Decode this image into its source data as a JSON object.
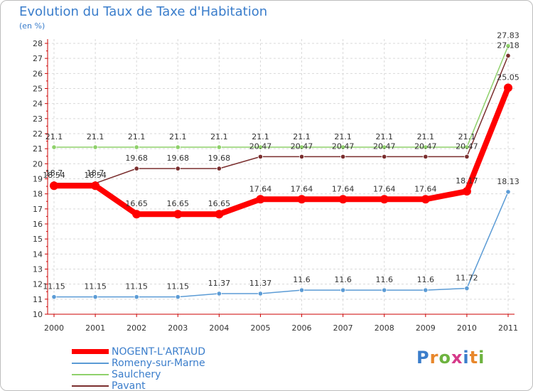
{
  "chart_data": {
    "type": "line",
    "title": "Evolution du Taux de Taxe d'Habitation",
    "unit_label": "(en %)",
    "xlabel": "",
    "ylabel": "",
    "ylim": [
      10,
      28
    ],
    "x": [
      "2000",
      "2001",
      "2002",
      "2003",
      "2004",
      "2005",
      "2006",
      "2007",
      "2008",
      "2009",
      "2010",
      "2011"
    ],
    "y_ticks": [
      "10",
      "11",
      "12",
      "13",
      "14",
      "15",
      "16",
      "17",
      "18",
      "19",
      "20",
      "21",
      "22",
      "23",
      "24",
      "25",
      "26",
      "27",
      "28"
    ],
    "grid": true,
    "legend_position": "bottom-left",
    "series": [
      {
        "name": "NOGENT-L'ARTAUD",
        "color": "#ff0000",
        "emphasis": "thick",
        "values": [
          18.54,
          18.54,
          16.65,
          16.65,
          16.65,
          17.64,
          17.64,
          17.64,
          17.64,
          17.64,
          18.17,
          25.05
        ],
        "labels": [
          "18.54",
          "18.54",
          "16.65",
          "16.65",
          "16.65",
          "17.64",
          "17.64",
          "17.64",
          "17.64",
          "17.64",
          "18.17",
          "25.05"
        ]
      },
      {
        "name": "Romeny-sur-Marne",
        "color": "#5b9bd5",
        "emphasis": "thin",
        "values": [
          11.15,
          11.15,
          11.15,
          11.15,
          11.37,
          11.37,
          11.6,
          11.6,
          11.6,
          11.6,
          11.72,
          18.13
        ],
        "labels": [
          "11.15",
          "11.15",
          "11.15",
          "11.15",
          "11.37",
          "11.37",
          "11.6",
          "11.6",
          "11.6",
          "11.6",
          "11.72",
          "18.13"
        ]
      },
      {
        "name": "Saulchery",
        "color": "#8fd16b",
        "emphasis": "thin",
        "values": [
          21.1,
          21.1,
          21.1,
          21.1,
          21.1,
          21.1,
          21.1,
          21.1,
          21.1,
          21.1,
          21.1,
          27.83
        ],
        "labels": [
          "21.1",
          "21.1",
          "21.1",
          "21.1",
          "21.1",
          "21.1",
          "21.1",
          "21.1",
          "21.1",
          "21.1",
          "21.1",
          "27.83"
        ]
      },
      {
        "name": "Pavant",
        "color": "#7a2e2e",
        "emphasis": "thin",
        "values": [
          18.7,
          18.7,
          19.68,
          19.68,
          19.68,
          20.47,
          20.47,
          20.47,
          20.47,
          20.47,
          20.47,
          27.18
        ],
        "labels": [
          "18.7",
          "18.7",
          "19.68",
          "19.68",
          "19.68",
          "20.47",
          "20.47",
          "20.47",
          "20.47",
          "20.47",
          "20.47",
          "27.18"
        ]
      }
    ]
  },
  "brand": {
    "letters": [
      "P",
      "r",
      "o",
      "x",
      "i",
      "t",
      "i"
    ],
    "colors": [
      "#3a7dcb",
      "#e8872b",
      "#6db33f",
      "#d63a8a",
      "#3a7dcb",
      "#e8872b",
      "#6db33f"
    ]
  }
}
